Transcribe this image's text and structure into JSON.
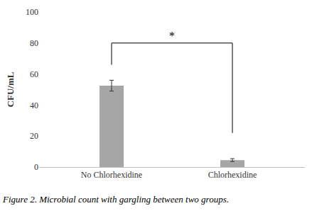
{
  "chart_data": {
    "type": "bar",
    "caption": "Figure 2. Microbial count with gargling between two groups.",
    "y_label": "CFU/mL",
    "categories": [
      "No Chlorhexidine",
      "Chlorhexidine"
    ],
    "values": [
      52.5,
      4.5
    ],
    "errors": [
      3.5,
      0.9
    ],
    "color": "#a6a6a6",
    "ylim": [
      0,
      100
    ],
    "yticks": [
      0,
      20,
      40,
      60,
      80,
      100
    ],
    "grid": false,
    "significance": {
      "text": "*",
      "from": "No Chlorhexidine",
      "to": "Chlorhexidine",
      "y": 80,
      "ends": [
        66,
        22
      ]
    }
  }
}
